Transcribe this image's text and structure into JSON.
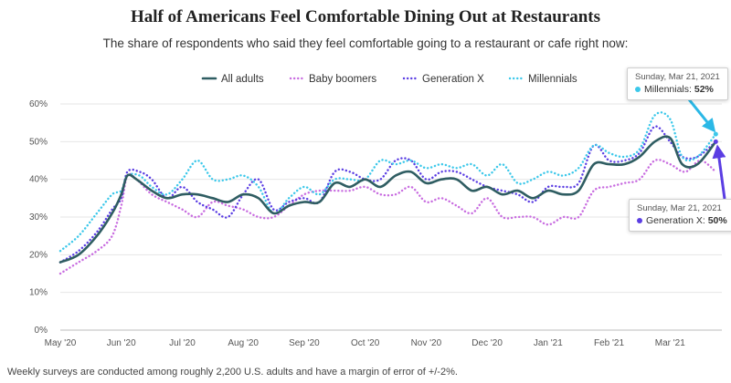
{
  "chart_data": {
    "type": "line",
    "title": "Half of Americans Feel Comfortable Dining Out at Restaurants",
    "subtitle": "The share of respondents who said they feel comfortable going to a restaurant or cafe right now:",
    "ylim": [
      0,
      60
    ],
    "yticks": [
      "0%",
      "10%",
      "20%",
      "30%",
      "40%",
      "50%",
      "60%"
    ],
    "ytick_values": [
      0,
      10,
      20,
      30,
      40,
      50,
      60
    ],
    "xlim": [
      0,
      10.85
    ],
    "x_ticks": [
      "May '20",
      "Jun '20",
      "Jul '20",
      "Aug '20",
      "Sep '20",
      "Oct '20",
      "Nov '20",
      "Dec '20",
      "Jan '21",
      "Feb '21",
      "Mar '21"
    ],
    "x_tick_values": [
      0,
      1,
      2,
      3,
      4,
      5,
      6,
      7,
      8,
      9,
      10
    ],
    "grid": true,
    "legend_position": "top-center",
    "series": [
      {
        "name": "All adults",
        "color": "#2f5d62",
        "style": "solid",
        "points": [
          [
            0,
            18
          ],
          [
            0.3,
            20
          ],
          [
            0.6,
            25
          ],
          [
            0.85,
            31
          ],
          [
            1.0,
            36
          ],
          [
            1.1,
            41
          ],
          [
            1.25,
            40
          ],
          [
            1.5,
            37
          ],
          [
            1.75,
            35
          ],
          [
            2.0,
            36
          ],
          [
            2.25,
            36
          ],
          [
            2.5,
            35
          ],
          [
            2.75,
            34
          ],
          [
            3.0,
            36
          ],
          [
            3.25,
            35
          ],
          [
            3.5,
            31
          ],
          [
            3.75,
            33
          ],
          [
            4.0,
            34
          ],
          [
            4.25,
            34
          ],
          [
            4.5,
            39
          ],
          [
            4.75,
            38
          ],
          [
            5.0,
            40
          ],
          [
            5.25,
            38
          ],
          [
            5.5,
            41
          ],
          [
            5.75,
            42
          ],
          [
            6.0,
            39
          ],
          [
            6.25,
            40
          ],
          [
            6.5,
            40
          ],
          [
            6.75,
            37
          ],
          [
            7.0,
            38
          ],
          [
            7.25,
            36
          ],
          [
            7.5,
            37
          ],
          [
            7.75,
            35
          ],
          [
            8.0,
            37
          ],
          [
            8.25,
            36
          ],
          [
            8.5,
            37
          ],
          [
            8.75,
            44
          ],
          [
            9.0,
            44
          ],
          [
            9.25,
            44
          ],
          [
            9.5,
            46
          ],
          [
            9.75,
            50
          ],
          [
            10.0,
            51
          ],
          [
            10.2,
            44
          ],
          [
            10.45,
            44
          ],
          [
            10.75,
            50
          ]
        ]
      },
      {
        "name": "Baby boomers",
        "color": "#c86ce0",
        "style": "dotted",
        "points": [
          [
            0,
            15
          ],
          [
            0.3,
            18
          ],
          [
            0.6,
            21
          ],
          [
            0.85,
            25
          ],
          [
            1.0,
            33
          ],
          [
            1.1,
            41
          ],
          [
            1.25,
            40
          ],
          [
            1.5,
            36
          ],
          [
            1.75,
            34
          ],
          [
            2.0,
            32
          ],
          [
            2.25,
            30
          ],
          [
            2.5,
            34
          ],
          [
            2.75,
            33
          ],
          [
            3.0,
            32
          ],
          [
            3.25,
            30
          ],
          [
            3.5,
            30
          ],
          [
            3.75,
            33
          ],
          [
            4.0,
            36
          ],
          [
            4.25,
            37
          ],
          [
            4.5,
            37
          ],
          [
            4.75,
            37
          ],
          [
            5.0,
            38
          ],
          [
            5.25,
            36
          ],
          [
            5.5,
            36
          ],
          [
            5.75,
            38
          ],
          [
            6.0,
            34
          ],
          [
            6.25,
            35
          ],
          [
            6.5,
            33
          ],
          [
            6.75,
            31
          ],
          [
            7.0,
            35
          ],
          [
            7.25,
            30
          ],
          [
            7.5,
            30
          ],
          [
            7.75,
            30
          ],
          [
            8.0,
            28
          ],
          [
            8.25,
            30
          ],
          [
            8.5,
            30
          ],
          [
            8.75,
            37
          ],
          [
            9.0,
            38
          ],
          [
            9.25,
            39
          ],
          [
            9.5,
            40
          ],
          [
            9.75,
            45
          ],
          [
            10.0,
            44
          ],
          [
            10.25,
            42
          ],
          [
            10.5,
            45
          ],
          [
            10.75,
            42
          ]
        ]
      },
      {
        "name": "Generation X",
        "color": "#5b3ee3",
        "style": "dotted",
        "points": [
          [
            0,
            18
          ],
          [
            0.3,
            21
          ],
          [
            0.6,
            26
          ],
          [
            0.85,
            32
          ],
          [
            1.0,
            35
          ],
          [
            1.1,
            42
          ],
          [
            1.3,
            42
          ],
          [
            1.5,
            40
          ],
          [
            1.75,
            35
          ],
          [
            2.0,
            38
          ],
          [
            2.25,
            34
          ],
          [
            2.5,
            32
          ],
          [
            2.75,
            30
          ],
          [
            3.0,
            36
          ],
          [
            3.25,
            40
          ],
          [
            3.5,
            32
          ],
          [
            3.75,
            34
          ],
          [
            4.0,
            35
          ],
          [
            4.25,
            34
          ],
          [
            4.5,
            42
          ],
          [
            4.75,
            42
          ],
          [
            5.0,
            40
          ],
          [
            5.25,
            40
          ],
          [
            5.5,
            45
          ],
          [
            5.75,
            45
          ],
          [
            6.0,
            40
          ],
          [
            6.25,
            42
          ],
          [
            6.5,
            42
          ],
          [
            6.75,
            40
          ],
          [
            7.0,
            38
          ],
          [
            7.25,
            37
          ],
          [
            7.5,
            36
          ],
          [
            7.75,
            34
          ],
          [
            8.0,
            38
          ],
          [
            8.25,
            38
          ],
          [
            8.5,
            39
          ],
          [
            8.75,
            49
          ],
          [
            9.0,
            45
          ],
          [
            9.25,
            45
          ],
          [
            9.5,
            47
          ],
          [
            9.75,
            54
          ],
          [
            10.0,
            50
          ],
          [
            10.2,
            46
          ],
          [
            10.45,
            46
          ],
          [
            10.75,
            50
          ]
        ]
      },
      {
        "name": "Millennials",
        "color": "#3cc8ea",
        "style": "dotted",
        "points": [
          [
            0,
            21
          ],
          [
            0.3,
            25
          ],
          [
            0.6,
            31
          ],
          [
            0.85,
            36
          ],
          [
            1.0,
            37
          ],
          [
            1.1,
            41
          ],
          [
            1.3,
            41
          ],
          [
            1.5,
            38
          ],
          [
            1.75,
            36
          ],
          [
            2.0,
            40
          ],
          [
            2.25,
            45
          ],
          [
            2.5,
            40
          ],
          [
            2.75,
            40
          ],
          [
            3.0,
            41
          ],
          [
            3.25,
            38
          ],
          [
            3.5,
            31
          ],
          [
            3.75,
            35
          ],
          [
            4.0,
            38
          ],
          [
            4.25,
            36
          ],
          [
            4.5,
            40
          ],
          [
            4.75,
            40
          ],
          [
            5.0,
            40
          ],
          [
            5.25,
            45
          ],
          [
            5.5,
            44
          ],
          [
            5.75,
            45
          ],
          [
            6.0,
            43
          ],
          [
            6.25,
            44
          ],
          [
            6.5,
            43
          ],
          [
            6.75,
            44
          ],
          [
            7.0,
            41
          ],
          [
            7.25,
            44
          ],
          [
            7.5,
            39
          ],
          [
            7.75,
            40
          ],
          [
            8.0,
            42
          ],
          [
            8.25,
            41
          ],
          [
            8.5,
            43
          ],
          [
            8.75,
            49
          ],
          [
            9.0,
            47
          ],
          [
            9.25,
            46
          ],
          [
            9.5,
            48
          ],
          [
            9.75,
            57
          ],
          [
            10.0,
            56
          ],
          [
            10.2,
            46
          ],
          [
            10.45,
            46
          ],
          [
            10.75,
            52
          ]
        ]
      }
    ],
    "tooltips": [
      {
        "date": "Sunday, Mar 21, 2021",
        "series": "Millennials",
        "value_label": "52%"
      },
      {
        "date": "Sunday, Mar 21, 2021",
        "series": "Generation X",
        "value_label": "50%"
      }
    ],
    "footnote": "Weekly surveys are conducted among roughly 2,200 U.S. adults and have a margin of error of +/-2%."
  }
}
